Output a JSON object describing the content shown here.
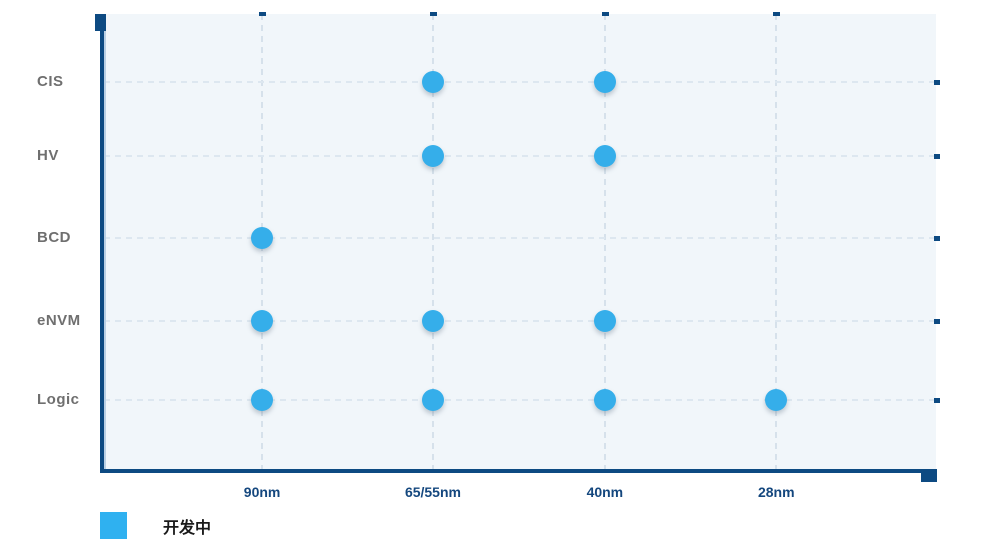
{
  "chart_data": {
    "type": "scatter",
    "title": "",
    "x_categories": [
      "90nm",
      "65/55nm",
      "40nm",
      "28nm"
    ],
    "y_categories": [
      "CIS",
      "HV",
      "BCD",
      "eNVM",
      "Logic"
    ],
    "series": [
      {
        "name": "开发中",
        "color": "#35aeea",
        "points": [
          {
            "x": "65/55nm",
            "y": "CIS"
          },
          {
            "x": "40nm",
            "y": "CIS"
          },
          {
            "x": "65/55nm",
            "y": "HV"
          },
          {
            "x": "40nm",
            "y": "HV"
          },
          {
            "x": "90nm",
            "y": "BCD"
          },
          {
            "x": "90nm",
            "y": "eNVM"
          },
          {
            "x": "65/55nm",
            "y": "eNVM"
          },
          {
            "x": "40nm",
            "y": "eNVM"
          },
          {
            "x": "90nm",
            "y": "Logic"
          },
          {
            "x": "65/55nm",
            "y": "Logic"
          },
          {
            "x": "40nm",
            "y": "Logic"
          },
          {
            "x": "28nm",
            "y": "Logic"
          }
        ]
      }
    ],
    "legend": {
      "position": "bottom-left",
      "items": [
        {
          "label": "开发中",
          "color": "#2fb1f0"
        }
      ]
    },
    "grid": "dashed",
    "xlabel": "",
    "ylabel": ""
  },
  "colors": {
    "plot_background": "#f1f6fa",
    "axis_line": "#0d4a82",
    "grid_line_h": "#dde7f0",
    "grid_line_v": "#d6e1eb",
    "x_label_text": "#14477e",
    "y_label_text": "#6f6f6f",
    "point": "#35aeea",
    "legend_text": "#1a1a1a"
  }
}
